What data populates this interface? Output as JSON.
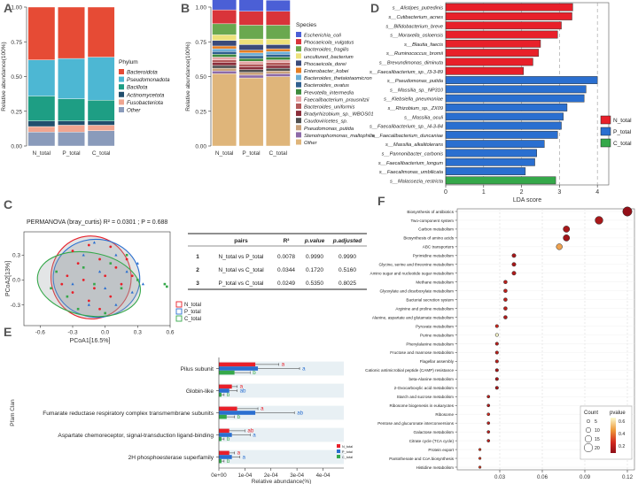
{
  "chart_data": [
    {
      "panel": "A",
      "type": "bar",
      "subtype": "stacked-100",
      "ylabel": "Relative abundance(100%)",
      "categories": [
        "N_total",
        "P_total",
        "C_total"
      ],
      "yticks": [
        "0.00",
        "0.25",
        "0.50",
        "0.75",
        "1.00"
      ],
      "legend_title": "Phylum",
      "series": [
        {
          "name": "Other",
          "color": "#8a9bbb",
          "values": [
            0.1,
            0.1,
            0.11
          ]
        },
        {
          "name": "Fusobacteriota",
          "color": "#f0a590",
          "values": [
            0.04,
            0.05,
            0.04
          ]
        },
        {
          "name": "Actinomycetota",
          "color": "#214e6d",
          "values": [
            0.04,
            0.03,
            0.03
          ]
        },
        {
          "name": "Bacillota",
          "color": "#1e9e84",
          "values": [
            0.18,
            0.16,
            0.15
          ]
        },
        {
          "name": "Pseudomonadota",
          "color": "#4db7d3",
          "values": [
            0.26,
            0.29,
            0.31
          ]
        },
        {
          "name": "Bacteroidota",
          "color": "#e64b35",
          "values": [
            0.38,
            0.37,
            0.36
          ]
        }
      ]
    },
    {
      "panel": "B",
      "type": "bar",
      "subtype": "stacked-100",
      "ylabel": "Relative abundance(100%)",
      "categories": [
        "N_total",
        "P_total",
        "C_total"
      ],
      "yticks": [
        "0.00",
        "0.25",
        "0.50",
        "0.75",
        "1.00"
      ],
      "legend_title": "Species",
      "series": [
        {
          "name": "Other",
          "color": "#dfb57a",
          "values": [
            0.52,
            0.49,
            0.5
          ]
        },
        {
          "name": "Stenotrophomonas_maltophilia",
          "color": "#8d6aa8",
          "values": [
            0.02,
            0.02,
            0.02
          ]
        },
        {
          "name": "Pseudomonas_putida",
          "color": "#c9a27c",
          "values": [
            0.02,
            0.02,
            0.02
          ]
        },
        {
          "name": "Caudoviricetes_sp.",
          "color": "#4f4f4f",
          "values": [
            0.02,
            0.02,
            0.02
          ]
        },
        {
          "name": "Bradyrhizobium_sp._WBOS01",
          "color": "#8b2e3a",
          "values": [
            0.02,
            0.02,
            0.02
          ]
        },
        {
          "name": "Bacteroides_uniformis",
          "color": "#b35a5a",
          "values": [
            0.02,
            0.02,
            0.02
          ]
        },
        {
          "name": "Faecalibacterium_prausnitzii",
          "color": "#e6a6a6",
          "values": [
            0.02,
            0.02,
            0.02
          ]
        },
        {
          "name": "Prevotella_intermedia",
          "color": "#3d8b3d",
          "values": [
            0.02,
            0.02,
            0.02
          ]
        },
        {
          "name": "Bacteroides_ovatus",
          "color": "#2f5f8f",
          "values": [
            0.02,
            0.02,
            0.02
          ]
        },
        {
          "name": "Bacteroides_thetaiotaomicron",
          "color": "#6baed6",
          "values": [
            0.02,
            0.02,
            0.02
          ]
        },
        {
          "name": "Enterobacter_kobei",
          "color": "#e67e22",
          "values": [
            0.02,
            0.02,
            0.02
          ]
        },
        {
          "name": "Phocaeicola_dorei",
          "color": "#3b4b7a",
          "values": [
            0.04,
            0.04,
            0.03
          ]
        },
        {
          "name": "uncultured_bacterium",
          "color": "#ede27b",
          "values": [
            0.04,
            0.04,
            0.04
          ]
        },
        {
          "name": "Bacteroides_fragilis",
          "color": "#6aa84f",
          "values": [
            0.08,
            0.1,
            0.1
          ]
        },
        {
          "name": "Phocaeicola_vulgatus",
          "color": "#d9343a",
          "values": [
            0.1,
            0.1,
            0.1
          ]
        },
        {
          "name": "Escherichia_coli",
          "color": "#4b5fd6",
          "values": [
            0.08,
            0.09,
            0.08
          ]
        }
      ]
    },
    {
      "panel": "D",
      "type": "bar",
      "subtype": "horizontal-lefse",
      "xlabel": "LDA score",
      "xlim": [
        0,
        4.3
      ],
      "xticks": [
        0,
        1,
        2,
        3,
        4
      ],
      "legend": [
        {
          "name": "N_total",
          "color": "#e8202a"
        },
        {
          "name": "P_total",
          "color": "#2a6fd0"
        },
        {
          "name": "C_total",
          "color": "#35a84a"
        }
      ],
      "bars": [
        {
          "label": "s__Alistipes_putredinis",
          "value": 3.35,
          "group": "N_total"
        },
        {
          "label": "s__Cutibacterium_acnes",
          "value": 3.33,
          "group": "N_total"
        },
        {
          "label": "s__Bifidobacterium_breve",
          "value": 3.05,
          "group": "N_total"
        },
        {
          "label": "s__Moraxella_osloensis",
          "value": 2.95,
          "group": "N_total"
        },
        {
          "label": "s__Blautia_faecis",
          "value": 2.5,
          "group": "N_total"
        },
        {
          "label": "s__Ruminococcus_bromii",
          "value": 2.45,
          "group": "N_total"
        },
        {
          "label": "s__Brevundimonas_diminuta",
          "value": 2.3,
          "group": "N_total"
        },
        {
          "label": "s__Faecalibacterium_sp._I3-3-89",
          "value": 2.05,
          "group": "N_total"
        },
        {
          "label": "s__Pseudomonas_putida",
          "value": 4.0,
          "group": "P_total"
        },
        {
          "label": "s__Massilia_sp._NP310",
          "value": 3.7,
          "group": "P_total"
        },
        {
          "label": "s__Klebsiella_pneumoniae",
          "value": 3.65,
          "group": "P_total"
        },
        {
          "label": "s__Rhizobium_sp._ZX09",
          "value": 3.2,
          "group": "P_total"
        },
        {
          "label": "s__Massilia_oculi",
          "value": 3.1,
          "group": "P_total"
        },
        {
          "label": "s__Faecalibacterium_sp._I4-3-84",
          "value": 3.05,
          "group": "P_total"
        },
        {
          "label": "s__Faecalibacterium_duncaniae",
          "value": 2.95,
          "group": "P_total"
        },
        {
          "label": "s__Massilia_alkalitolerans",
          "value": 2.6,
          "group": "P_total"
        },
        {
          "label": "s__Pannonibacter_carbonis",
          "value": 2.4,
          "group": "P_total"
        },
        {
          "label": "s__Faecalibacterium_longum",
          "value": 2.35,
          "group": "P_total"
        },
        {
          "label": "s__Faecalimonas_umbilicata",
          "value": 2.1,
          "group": "P_total"
        },
        {
          "label": "s__Malassezia_restricta",
          "value": 2.9,
          "group": "C_total"
        }
      ]
    },
    {
      "panel": "C",
      "type": "scatter",
      "subtype": "pcoa",
      "title": "PERMANOVA (bray_curtis) R² = 0.0301 ; P = 0.688",
      "xlabel": "PCoA1[16.5%]",
      "ylabel": "PCoA2[13%]",
      "xlim": [
        -0.75,
        0.6
      ],
      "ylim": [
        -0.55,
        0.58
      ],
      "xticks": [
        "-0.6",
        "-0.3",
        "0.0",
        "0.3",
        "0.6"
      ],
      "yticks": [
        "-0.3",
        "0.0",
        "0.3"
      ],
      "series": [
        {
          "name": "N_total",
          "color": "#e8202a",
          "ellipse": {
            "cx": -0.13,
            "cy": 0.03,
            "rx": 0.37,
            "ry": 0.5,
            "angle": -8
          },
          "points": [
            [
              -0.3,
              0.35
            ],
            [
              -0.15,
              0.42
            ],
            [
              0.05,
              0.4
            ],
            [
              -0.25,
              0.2
            ],
            [
              -0.05,
              0.25
            ],
            [
              0.1,
              0.15
            ],
            [
              -0.35,
              0.05
            ],
            [
              -0.2,
              0.0
            ],
            [
              0.0,
              0.05
            ],
            [
              -0.1,
              -0.1
            ],
            [
              0.15,
              -0.05
            ],
            [
              -0.3,
              -0.15
            ],
            [
              0.05,
              -0.2
            ],
            [
              -0.15,
              -0.25
            ],
            [
              0.2,
              0.25
            ],
            [
              -0.05,
              -0.35
            ],
            [
              0.25,
              0.05
            ],
            [
              -0.4,
              -0.05
            ]
          ]
        },
        {
          "name": "P_total",
          "color": "#2a6fd0",
          "ellipse": {
            "cx": -0.08,
            "cy": 0.02,
            "rx": 0.4,
            "ry": 0.47,
            "angle": 5
          },
          "points": [
            [
              -0.2,
              0.3
            ],
            [
              0.1,
              0.3
            ],
            [
              -0.05,
              0.1
            ],
            [
              0.2,
              0.1
            ],
            [
              -0.3,
              -0.05
            ],
            [
              0.0,
              -0.1
            ],
            [
              0.25,
              -0.15
            ],
            [
              -0.15,
              -0.3
            ],
            [
              0.1,
              -0.3
            ],
            [
              0.3,
              0.2
            ],
            [
              -0.1,
              0.45
            ],
            [
              0.35,
              -0.05
            ]
          ]
        },
        {
          "name": "C_total",
          "color": "#35a84a",
          "ellipse": {
            "cx": -0.15,
            "cy": -0.05,
            "rx": 0.48,
            "ry": 0.38,
            "angle": 10
          },
          "points": [
            [
              -0.45,
              0.1
            ],
            [
              -0.35,
              -0.2
            ],
            [
              -0.2,
              0.15
            ],
            [
              -0.1,
              -0.05
            ],
            [
              0.05,
              0.2
            ],
            [
              0.15,
              -0.1
            ],
            [
              -0.25,
              -0.35
            ],
            [
              0.0,
              -0.4
            ],
            [
              0.3,
              0.0
            ],
            [
              -0.5,
              -0.1
            ],
            [
              0.2,
              0.3
            ],
            [
              0.55,
              -0.05
            ],
            [
              0.57,
              -0.08
            ]
          ]
        }
      ]
    },
    {
      "panel": "C-table",
      "type": "table",
      "columns": [
        "pairs",
        "R²",
        "p.value",
        "p.adjusted"
      ],
      "rows": [
        [
          "1",
          "N_total vs P_total",
          "0.0078",
          "0.9990",
          "0.9990"
        ],
        [
          "2",
          "N_total vs C_total",
          "0.0344",
          "0.1720",
          "0.5160"
        ],
        [
          "3",
          "P_total vs C_total",
          "0.0249",
          "0.5350",
          "0.8025"
        ]
      ]
    },
    {
      "panel": "E",
      "type": "bar",
      "subtype": "horizontal-grouped",
      "xlabel": "Relative abundance(%)",
      "ylabel": "Pfam Clan",
      "xlim": [
        0,
        0.00048
      ],
      "xticks": [
        "0e+00",
        "1e-04",
        "2e-04",
        "3e-04",
        "4e-04"
      ],
      "categories": [
        "Pilus subunit",
        "Globin-like",
        "Fumarate reductase respiratory complex transmembrane subunits",
        "Aspartate chemoreceptor, signal-transduction ligand-binding",
        "2H phosphoesterase superfamily"
      ],
      "series": [
        {
          "name": "N_total",
          "color": "#e8202a",
          "values": [
            0.00014,
            5e-05,
            7e-05,
            4e-05,
            4e-05
          ],
          "errors": [
            9e-05,
            2e-05,
            8e-05,
            6e-05,
            2e-05
          ],
          "letters": [
            "a",
            "a",
            "a",
            "ab",
            "a"
          ]
        },
        {
          "name": "P_total",
          "color": "#2a6fd0",
          "values": [
            0.00015,
            4e-05,
            0.00014,
            5e-05,
            5e-05
          ],
          "errors": [
            0.00016,
            3e-05,
            0.00015,
            7e-05,
            3e-05
          ],
          "letters": [
            "a",
            "ab",
            "ab",
            "a",
            "a"
          ]
        },
        {
          "name": "C_total",
          "color": "#35a84a",
          "values": [
            6e-05,
            1e-05,
            3e-05,
            1e-05,
            1e-05
          ],
          "errors": [
            6e-05,
            1e-05,
            3e-05,
            1e-05,
            1e-05
          ],
          "letters": [
            "b",
            "b",
            "b",
            "b",
            "b"
          ]
        }
      ]
    },
    {
      "panel": "F",
      "type": "scatter",
      "subtype": "bubble",
      "xlim": [
        0.0,
        0.125
      ],
      "xticks": [
        "0.03",
        "0.06",
        "0.09",
        "0.12"
      ],
      "size_legend_title": "Count",
      "size_legend": [
        "5",
        "10",
        "15",
        "20"
      ],
      "color_legend_title": "pvalue",
      "color_legend": [
        "0.6",
        "0.4",
        "0.2"
      ],
      "points": [
        {
          "label": "Biosynthesis of antibiotics",
          "x": 0.12,
          "count": 22,
          "pvalue": 0.05
        },
        {
          "label": "Two-component system",
          "x": 0.1,
          "count": 18,
          "pvalue": 0.1
        },
        {
          "label": "Carbon metabolism",
          "x": 0.077,
          "count": 14,
          "pvalue": 0.1
        },
        {
          "label": "Biosynthesis of amino acids",
          "x": 0.077,
          "count": 14,
          "pvalue": 0.08
        },
        {
          "label": "ABC transporters",
          "x": 0.072,
          "count": 13,
          "pvalue": 0.5
        },
        {
          "label": "Pyrimidine metabolism",
          "x": 0.04,
          "count": 7,
          "pvalue": 0.1
        },
        {
          "label": "Glycine, serine and threonine metabolism",
          "x": 0.04,
          "count": 7,
          "pvalue": 0.1
        },
        {
          "label": "Amino sugar and nucleotide sugar metabolism",
          "x": 0.04,
          "count": 7,
          "pvalue": 0.12
        },
        {
          "label": "Methane metabolism",
          "x": 0.034,
          "count": 6,
          "pvalue": 0.15
        },
        {
          "label": "Glyoxylate and dicarboxylate metabolism",
          "x": 0.034,
          "count": 6,
          "pvalue": 0.15
        },
        {
          "label": "Bacterial secretion system",
          "x": 0.034,
          "count": 6,
          "pvalue": 0.15
        },
        {
          "label": "Arginine and proline metabolism",
          "x": 0.034,
          "count": 6,
          "pvalue": 0.15
        },
        {
          "label": "Alanine, aspartate and glutamate metabolism",
          "x": 0.034,
          "count": 6,
          "pvalue": 0.12
        },
        {
          "label": "Pyruvate metabolism",
          "x": 0.028,
          "count": 5,
          "pvalue": 0.2
        },
        {
          "label": "Purine metabolism",
          "x": 0.028,
          "count": 5,
          "pvalue": 0.7
        },
        {
          "label": "Phenylalanine metabolism",
          "x": 0.028,
          "count": 5,
          "pvalue": 0.15
        },
        {
          "label": "Fructose and mannose metabolism",
          "x": 0.028,
          "count": 5,
          "pvalue": 0.15
        },
        {
          "label": "Flagellar assembly",
          "x": 0.028,
          "count": 5,
          "pvalue": 0.15
        },
        {
          "label": "Cationic antimicrobial peptide (CAMP) resistance",
          "x": 0.028,
          "count": 5,
          "pvalue": 0.1
        },
        {
          "label": "beta-Alanine metabolism",
          "x": 0.028,
          "count": 5,
          "pvalue": 0.1
        },
        {
          "label": "2-Oxocarboxylic acid metabolism",
          "x": 0.028,
          "count": 5,
          "pvalue": 0.1
        },
        {
          "label": "Starch and sucrose metabolism",
          "x": 0.022,
          "count": 4,
          "pvalue": 0.15
        },
        {
          "label": "Ribosome biogenesis in eukaryotes",
          "x": 0.022,
          "count": 4,
          "pvalue": 0.12
        },
        {
          "label": "Ribosome",
          "x": 0.022,
          "count": 4,
          "pvalue": 0.2
        },
        {
          "label": "Pentose and glucuronate interconversions",
          "x": 0.022,
          "count": 4,
          "pvalue": 0.15
        },
        {
          "label": "Galactose metabolism",
          "x": 0.022,
          "count": 4,
          "pvalue": 0.15
        },
        {
          "label": "Citrate cycle (TCA cycle)",
          "x": 0.022,
          "count": 4,
          "pvalue": 0.15
        },
        {
          "label": "Protein export",
          "x": 0.016,
          "count": 3,
          "pvalue": 0.25
        },
        {
          "label": "Pantothenate and CoA biosynthesis",
          "x": 0.016,
          "count": 3,
          "pvalue": 0.25
        },
        {
          "label": "Histidine metabolism",
          "x": 0.016,
          "count": 3,
          "pvalue": 0.25
        }
      ]
    }
  ]
}
